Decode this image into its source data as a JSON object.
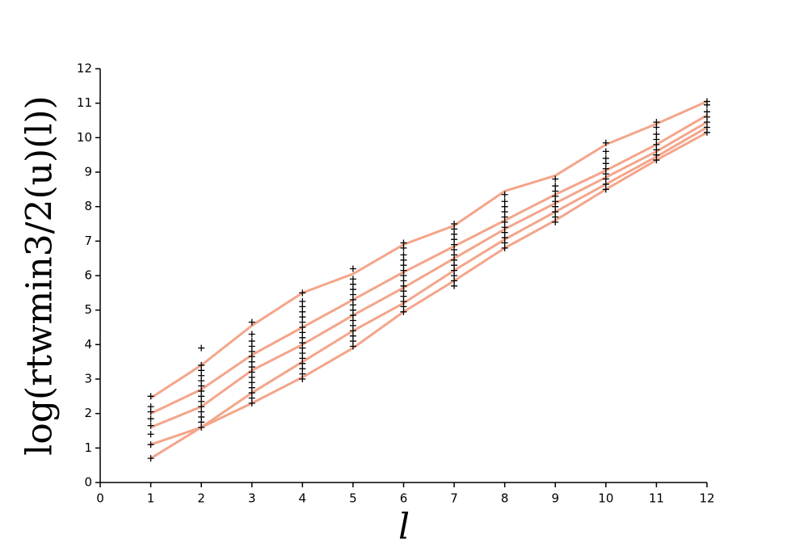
{
  "chart_data": {
    "type": "line",
    "xlabel": "l",
    "ylabel": "log(rtwmin3/2(u)(l))",
    "xlim": [
      0,
      12
    ],
    "ylim": [
      0,
      12
    ],
    "xticks": [
      0,
      1,
      2,
      3,
      4,
      5,
      6,
      7,
      8,
      9,
      10,
      11,
      12
    ],
    "yticks": [
      0,
      1,
      2,
      3,
      4,
      5,
      6,
      7,
      8,
      9,
      10,
      11,
      12
    ],
    "series": [
      {
        "type": "line",
        "color": "#f4a58a",
        "x": [
          1,
          2,
          3,
          4,
          5,
          6,
          7,
          8,
          9,
          10,
          11,
          12
        ],
        "values": [
          2.45,
          3.4,
          4.55,
          5.5,
          6.05,
          6.9,
          7.45,
          8.45,
          8.9,
          9.8,
          10.4,
          11.05
        ]
      },
      {
        "type": "line",
        "color": "#f4a58a",
        "x": [
          1,
          2,
          3,
          4,
          5,
          6,
          7,
          8,
          9,
          10,
          11,
          12
        ],
        "values": [
          2.0,
          2.7,
          3.7,
          4.5,
          5.3,
          6.1,
          6.85,
          7.6,
          8.35,
          9.05,
          9.8,
          10.65
        ]
      },
      {
        "type": "line",
        "color": "#f4a58a",
        "x": [
          1,
          2,
          3,
          4,
          5,
          6,
          7,
          8,
          9,
          10,
          11,
          12
        ],
        "values": [
          1.6,
          2.2,
          3.25,
          4.0,
          4.85,
          5.65,
          6.5,
          7.35,
          8.1,
          8.85,
          9.6,
          10.45
        ]
      },
      {
        "type": "line",
        "color": "#f4a58a",
        "x": [
          1,
          2,
          3,
          4,
          5,
          6,
          7,
          8,
          9,
          10,
          11,
          12
        ],
        "values": [
          1.1,
          1.6,
          2.6,
          3.5,
          4.4,
          5.2,
          6.15,
          7.05,
          7.85,
          8.65,
          9.45,
          10.3
        ]
      },
      {
        "type": "line",
        "color": "#f4a58a",
        "x": [
          1,
          2,
          3,
          4,
          5,
          6,
          7,
          8,
          9,
          10,
          11,
          12
        ],
        "values": [
          0.7,
          1.6,
          2.3,
          3.05,
          3.9,
          4.95,
          5.85,
          6.8,
          7.6,
          8.5,
          9.35,
          10.15
        ]
      },
      {
        "type": "scatter",
        "color": "#000000",
        "x": [
          1,
          1,
          1,
          1,
          1,
          1,
          1,
          1,
          2,
          2,
          2,
          2,
          2,
          2,
          2,
          2,
          2,
          2,
          2,
          2,
          2,
          2,
          3,
          3,
          3,
          3,
          3,
          3,
          3,
          3,
          3,
          3,
          3,
          3,
          3,
          3,
          3,
          4,
          4,
          4,
          4,
          4,
          4,
          4,
          4,
          4,
          4,
          4,
          4,
          4,
          4,
          4,
          4,
          4,
          5,
          5,
          5,
          5,
          5,
          5,
          5,
          5,
          5,
          5,
          5,
          5,
          5,
          5,
          5,
          6,
          6,
          6,
          6,
          6,
          6,
          6,
          6,
          6,
          6,
          6,
          6,
          6,
          6,
          7,
          7,
          7,
          7,
          7,
          7,
          7,
          7,
          7,
          7,
          7,
          7,
          7,
          8,
          8,
          8,
          8,
          8,
          8,
          8,
          8,
          8,
          8,
          8,
          9,
          9,
          9,
          9,
          9,
          9,
          9,
          9,
          9,
          10,
          10,
          10,
          10,
          10,
          10,
          10,
          10,
          10,
          11,
          11,
          11,
          11,
          11,
          11,
          11,
          11,
          12,
          12,
          12,
          12,
          12,
          12,
          12
        ],
        "values": [
          0.7,
          1.1,
          1.4,
          1.65,
          1.85,
          2.05,
          2.2,
          2.5,
          1.6,
          1.75,
          1.9,
          2.05,
          2.2,
          2.35,
          2.5,
          2.65,
          2.8,
          2.95,
          3.1,
          3.25,
          3.4,
          3.9,
          2.3,
          2.45,
          2.6,
          2.75,
          2.9,
          3.05,
          3.2,
          3.35,
          3.5,
          3.65,
          3.8,
          3.95,
          4.1,
          4.3,
          4.65,
          3.0,
          3.15,
          3.3,
          3.45,
          3.6,
          3.75,
          3.9,
          4.05,
          4.2,
          4.35,
          4.5,
          4.65,
          4.8,
          4.95,
          5.1,
          5.25,
          5.5,
          3.95,
          4.1,
          4.25,
          4.4,
          4.55,
          4.7,
          4.85,
          5.0,
          5.15,
          5.3,
          5.45,
          5.6,
          5.75,
          5.9,
          6.2,
          4.95,
          5.1,
          5.25,
          5.4,
          5.55,
          5.7,
          5.85,
          6.0,
          6.15,
          6.3,
          6.45,
          6.6,
          6.8,
          6.95,
          5.7,
          5.85,
          6.0,
          6.15,
          6.3,
          6.45,
          6.6,
          6.75,
          6.9,
          7.05,
          7.2,
          7.35,
          7.5,
          6.8,
          6.95,
          7.1,
          7.25,
          7.4,
          7.55,
          7.7,
          7.85,
          8.0,
          8.15,
          8.35,
          7.55,
          7.7,
          7.85,
          8.0,
          8.15,
          8.3,
          8.45,
          8.6,
          8.8,
          8.5,
          8.65,
          8.8,
          8.95,
          9.1,
          9.25,
          9.4,
          9.6,
          9.85,
          9.35,
          9.5,
          9.65,
          9.8,
          9.95,
          10.1,
          10.3,
          10.45,
          10.15,
          10.3,
          10.45,
          10.6,
          10.75,
          10.95,
          11.05
        ]
      }
    ]
  }
}
